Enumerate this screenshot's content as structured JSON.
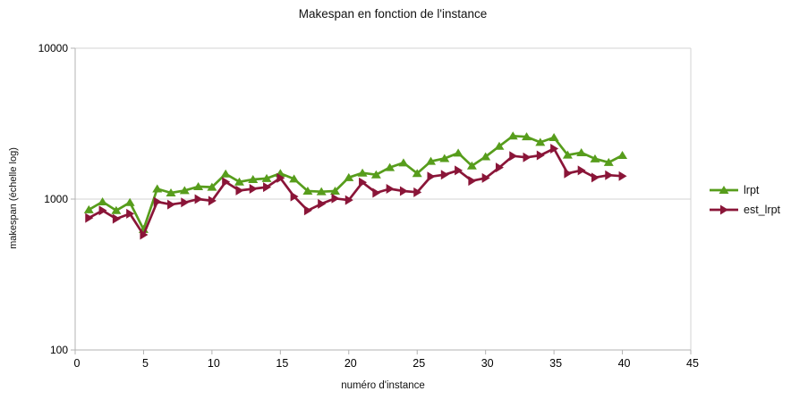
{
  "chart_data": {
    "type": "line",
    "title": "Makespan en fonction de l'instance",
    "xlabel": "numéro d'instance",
    "ylabel": "makespan (échelle log)",
    "y_scale": "log",
    "xlim": [
      0,
      45
    ],
    "ylim": [
      100,
      10000
    ],
    "x_ticks": [
      0,
      5,
      10,
      15,
      20,
      25,
      30,
      35,
      40,
      45
    ],
    "y_ticks": [
      100,
      1000,
      10000
    ],
    "grid": "horizontal",
    "legend_position": "right",
    "x": [
      1,
      2,
      3,
      4,
      5,
      6,
      7,
      8,
      9,
      10,
      11,
      12,
      13,
      14,
      15,
      16,
      17,
      18,
      19,
      20,
      21,
      22,
      23,
      24,
      25,
      26,
      27,
      28,
      29,
      30,
      31,
      32,
      33,
      34,
      35,
      36,
      37,
      38,
      39,
      40
    ],
    "series": [
      {
        "name": "lrpt",
        "color": "#579d1c",
        "marker": "triangle-up",
        "values": [
          850,
          960,
          840,
          950,
          630,
          1170,
          1100,
          1140,
          1210,
          1200,
          1470,
          1300,
          1350,
          1370,
          1480,
          1360,
          1130,
          1120,
          1130,
          1390,
          1490,
          1450,
          1620,
          1740,
          1480,
          1780,
          1860,
          2020,
          1660,
          1910,
          2240,
          2620,
          2590,
          2380,
          2560,
          1960,
          2030,
          1850,
          1750,
          1950
        ]
      },
      {
        "name": "est_lrpt",
        "color": "#8a1538",
        "marker": "triangle-right",
        "values": [
          750,
          840,
          740,
          800,
          580,
          960,
          920,
          950,
          1000,
          975,
          1300,
          1140,
          1170,
          1200,
          1380,
          1040,
          840,
          930,
          1010,
          985,
          1290,
          1100,
          1170,
          1130,
          1110,
          1410,
          1450,
          1550,
          1320,
          1380,
          1620,
          1930,
          1890,
          1950,
          2160,
          1480,
          1550,
          1390,
          1440,
          1420
        ]
      }
    ]
  },
  "colors": {
    "grid": "#d3d3d3",
    "axis": "#b3b3b3",
    "tick_text": "#000000",
    "background": "#ffffff"
  }
}
